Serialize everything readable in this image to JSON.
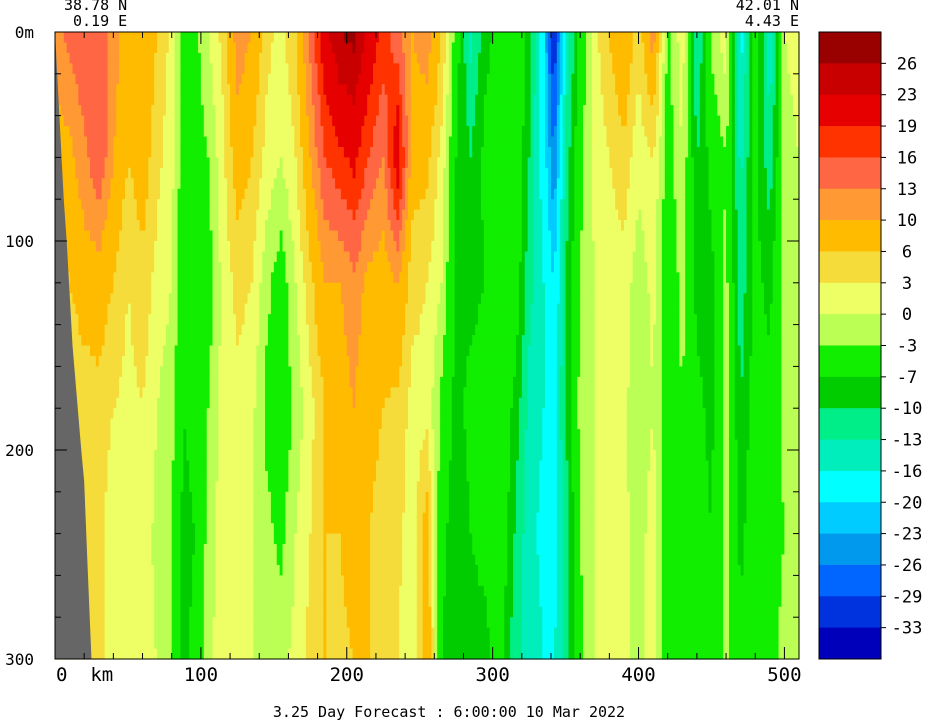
{
  "chart_data": {
    "type": "heatmap",
    "title": "",
    "footer": "3.25 Day Forecast :  6:00:00  10 Mar 2022",
    "corner_left": {
      "lat": "38.78 N",
      "lon": "0.19 E"
    },
    "corner_right": {
      "lat": "42.01 N",
      "lon": "4.43 E"
    },
    "x_axis": {
      "range": [
        0,
        510
      ],
      "ticks": [
        0,
        100,
        200,
        300,
        400,
        500
      ],
      "tick_labels": [
        "0  km",
        "100",
        "200",
        "300",
        "400",
        "500"
      ]
    },
    "y_axis": {
      "range": [
        0,
        300
      ],
      "inverted": true,
      "ticks": [
        0,
        100,
        200,
        300
      ],
      "tick_labels": [
        "0m",
        "100",
        "200",
        "300"
      ]
    },
    "colorbar": {
      "labels": [
        "26",
        "23",
        "19",
        "16",
        "13",
        "10",
        "6",
        "3",
        "0",
        "-3",
        "-7",
        "-10",
        "-13",
        "-16",
        "-20",
        "-23",
        "-26",
        "-29",
        "-33"
      ],
      "colors": [
        "#990000",
        "#c80000",
        "#e60000",
        "#ff3300",
        "#ff6644",
        "#ff9933",
        "#ffbb00",
        "#f5dc3a",
        "#eeff66",
        "#bbff55",
        "#11ee00",
        "#00cc00",
        "#00ee88",
        "#00eebb",
        "#00ffff",
        "#00ccff",
        "#0099ee",
        "#0066ff",
        "#0033dd",
        "#0000bb"
      ]
    },
    "seabed_color": "#666666",
    "columns": [
      {
        "x": 0,
        "v": [
          12,
          8,
          4,
          2,
          1,
          2
        ]
      },
      {
        "x": 10,
        "v": [
          14,
          9,
          6,
          3,
          3,
          4
        ]
      },
      {
        "x": 20,
        "v": [
          16,
          12,
          8,
          4,
          3,
          4
        ]
      },
      {
        "x": 30,
        "v": [
          14,
          16,
          8,
          5,
          4,
          4
        ]
      },
      {
        "x": 40,
        "v": [
          12,
          10,
          6,
          3,
          1,
          2
        ]
      },
      {
        "x": 50,
        "v": [
          8,
          6,
          3,
          2,
          1,
          0
        ]
      },
      {
        "x": 60,
        "v": [
          10,
          8,
          5,
          3,
          2,
          1
        ]
      },
      {
        "x": 70,
        "v": [
          6,
          4,
          2,
          0,
          -1,
          0
        ]
      },
      {
        "x": 80,
        "v": [
          2,
          1,
          0,
          -2,
          -3,
          -3
        ]
      },
      {
        "x": 88,
        "v": [
          -5,
          -5,
          -6,
          -7,
          -8,
          -8
        ]
      },
      {
        "x": 96,
        "v": [
          -4,
          -5,
          -5,
          -6,
          -7,
          -6
        ]
      },
      {
        "x": 105,
        "v": [
          0,
          -3,
          -5,
          -3,
          -2,
          -1
        ]
      },
      {
        "x": 115,
        "v": [
          4,
          2,
          1,
          1,
          2,
          2
        ]
      },
      {
        "x": 125,
        "v": [
          12,
          8,
          4,
          2,
          1,
          1
        ]
      },
      {
        "x": 135,
        "v": [
          10,
          6,
          3,
          1,
          0,
          0
        ]
      },
      {
        "x": 145,
        "v": [
          4,
          2,
          -2,
          -4,
          -2,
          0
        ]
      },
      {
        "x": 155,
        "v": [
          2,
          0,
          -5,
          -6,
          -4,
          -1
        ]
      },
      {
        "x": 165,
        "v": [
          6,
          3,
          0,
          -2,
          0,
          1
        ]
      },
      {
        "x": 175,
        "v": [
          14,
          10,
          5,
          2,
          3,
          4
        ]
      },
      {
        "x": 185,
        "v": [
          22,
          16,
          10,
          6,
          6,
          6
        ]
      },
      {
        "x": 195,
        "v": [
          26,
          18,
          10,
          8,
          6,
          5
        ]
      },
      {
        "x": 205,
        "v": [
          27,
          20,
          12,
          10,
          8,
          6
        ]
      },
      {
        "x": 215,
        "v": [
          22,
          16,
          9,
          7,
          6,
          6
        ]
      },
      {
        "x": 225,
        "v": [
          18,
          13,
          8,
          6,
          5,
          4
        ]
      },
      {
        "x": 235,
        "v": [
          14,
          22,
          10,
          5,
          4,
          3
        ]
      },
      {
        "x": 245,
        "v": [
          10,
          8,
          4,
          2,
          1,
          0
        ]
      },
      {
        "x": 255,
        "v": [
          12,
          7,
          3,
          2,
          8,
          10
        ]
      },
      {
        "x": 265,
        "v": [
          6,
          2,
          0,
          -4,
          -6,
          -7
        ]
      },
      {
        "x": 275,
        "v": [
          -5,
          -7,
          -8,
          -8,
          -9,
          -9
        ]
      },
      {
        "x": 285,
        "v": [
          -14,
          -10,
          -8,
          -6,
          -7,
          -8
        ]
      },
      {
        "x": 295,
        "v": [
          -8,
          -6,
          -7,
          -5,
          -6,
          -8
        ]
      },
      {
        "x": 305,
        "v": [
          -6,
          -5,
          -4,
          -3,
          -4,
          -5
        ]
      },
      {
        "x": 315,
        "v": [
          -4,
          -3,
          -4,
          -8,
          -10,
          -12
        ]
      },
      {
        "x": 325,
        "v": [
          -8,
          -10,
          -12,
          -14,
          -15,
          -14
        ]
      },
      {
        "x": 335,
        "v": [
          -20,
          -18,
          -16,
          -16,
          -17,
          -16
        ]
      },
      {
        "x": 342,
        "v": [
          -33,
          -26,
          -20,
          -17,
          -18,
          -16
        ]
      },
      {
        "x": 350,
        "v": [
          -16,
          -12,
          -10,
          -10,
          -12,
          -12
        ]
      },
      {
        "x": 360,
        "v": [
          -6,
          -4,
          -3,
          -2,
          -3,
          -4
        ]
      },
      {
        "x": 370,
        "v": [
          2,
          1,
          0,
          0,
          0,
          0
        ]
      },
      {
        "x": 380,
        "v": [
          6,
          3,
          1,
          0,
          1,
          0
        ]
      },
      {
        "x": 390,
        "v": [
          10,
          5,
          2,
          1,
          1,
          1
        ]
      },
      {
        "x": 400,
        "v": [
          4,
          1,
          -2,
          -3,
          -2,
          -1
        ]
      },
      {
        "x": 410,
        "v": [
          12,
          3,
          1,
          0,
          2,
          1
        ]
      },
      {
        "x": 420,
        "v": [
          -4,
          -5,
          -6,
          -6,
          -6,
          -6
        ]
      },
      {
        "x": 430,
        "v": [
          2,
          0,
          -2,
          -3,
          -4,
          -4
        ]
      },
      {
        "x": 440,
        "v": [
          -14,
          -10,
          -8,
          -6,
          -5,
          -4
        ]
      },
      {
        "x": 450,
        "v": [
          -2,
          -6,
          -8,
          -8,
          -7,
          -6
        ]
      },
      {
        "x": 460,
        "v": [
          2,
          -3,
          -2,
          -1,
          -2,
          -2
        ]
      },
      {
        "x": 470,
        "v": [
          -18,
          -14,
          -12,
          -10,
          -8,
          -6
        ]
      },
      {
        "x": 480,
        "v": [
          -4,
          -6,
          -6,
          -5,
          -4,
          -3
        ]
      },
      {
        "x": 490,
        "v": [
          -16,
          -12,
          -8,
          -6,
          -5,
          -4
        ]
      },
      {
        "x": 500,
        "v": [
          0,
          -2,
          -1,
          -2,
          -3,
          -2
        ]
      },
      {
        "x": 510,
        "v": [
          2,
          0,
          0,
          -1,
          -2,
          -2
        ]
      }
    ],
    "seabed": [
      {
        "x": 0,
        "depth": 0
      },
      {
        "x": 3,
        "depth": 40
      },
      {
        "x": 6,
        "depth": 80
      },
      {
        "x": 8,
        "depth": 100
      },
      {
        "x": 12,
        "depth": 150
      },
      {
        "x": 18,
        "depth": 200
      },
      {
        "x": 20,
        "depth": 215
      },
      {
        "x": 22,
        "depth": 250
      },
      {
        "x": 25,
        "depth": 300
      }
    ]
  }
}
